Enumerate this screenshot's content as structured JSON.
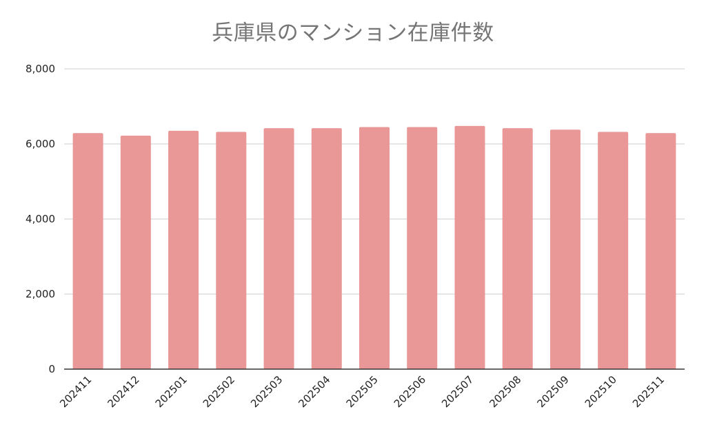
{
  "chart_data": {
    "type": "bar",
    "title": "兵庫県のマンション在庫件数",
    "categories": [
      "202411",
      "202412",
      "202501",
      "202502",
      "202503",
      "202504",
      "202505",
      "202506",
      "202507",
      "202508",
      "202509",
      "202510",
      "202511"
    ],
    "values": [
      6290,
      6220,
      6350,
      6320,
      6420,
      6420,
      6450,
      6450,
      6480,
      6420,
      6380,
      6320,
      6290
    ],
    "xlabel": "",
    "ylabel": "",
    "ylim": [
      0,
      8000
    ],
    "yticks": [
      0,
      2000,
      4000,
      6000,
      8000
    ],
    "ytick_labels": [
      "0",
      "2,000",
      "4,000",
      "6,000",
      "8,000"
    ],
    "grid": true,
    "legend": "none",
    "colors": {
      "bar": "#e99797",
      "grid": "#cccccc",
      "axis": "#333333",
      "title": "#757575"
    }
  }
}
